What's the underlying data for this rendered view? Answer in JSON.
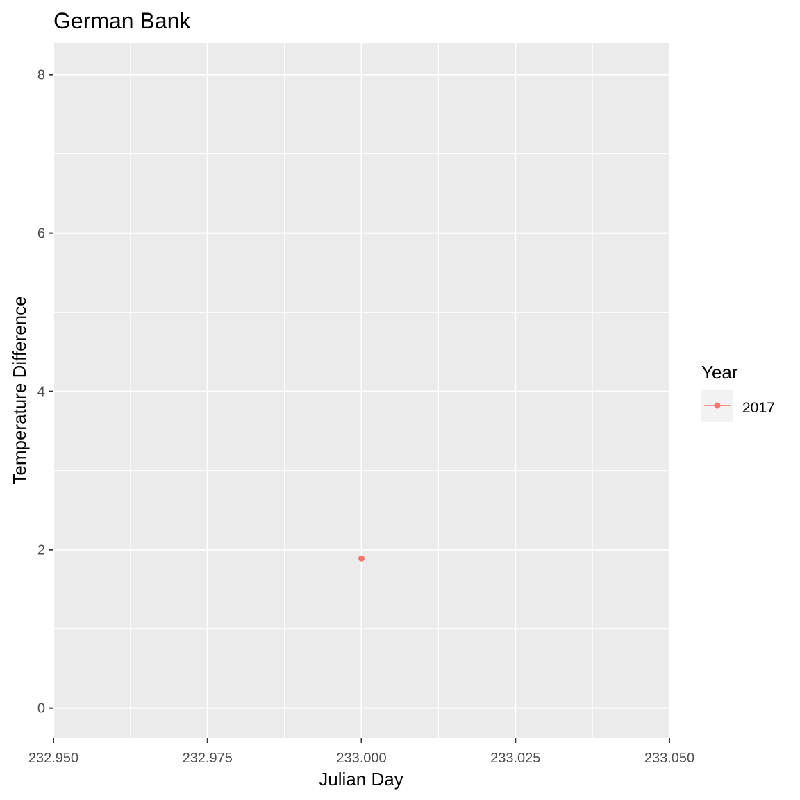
{
  "chart_data": {
    "type": "scatter",
    "title": "German Bank",
    "xlabel": "Julian Day",
    "ylabel": "Temperature Difference",
    "xlim": [
      232.95,
      233.05
    ],
    "ylim": [
      -0.38,
      8.4
    ],
    "x_ticks": [
      232.95,
      232.975,
      233.0,
      233.025,
      233.05
    ],
    "x_tick_labels": [
      "232.950",
      "232.975",
      "233.000",
      "233.025",
      "233.050"
    ],
    "y_ticks": [
      0,
      2,
      4,
      6,
      8
    ],
    "y_tick_labels": [
      "0",
      "2",
      "4",
      "6",
      "8"
    ],
    "x_minor_ticks": [
      232.9625,
      232.9875,
      233.0125,
      233.0375
    ],
    "y_minor_ticks": [
      1,
      3,
      5,
      7
    ],
    "grid": true,
    "legend": {
      "title": "Year",
      "position": "right"
    },
    "series": [
      {
        "name": "2017",
        "color": "#F8766D",
        "points": [
          {
            "x": 233.0,
            "y": 1.89
          }
        ]
      }
    ]
  }
}
